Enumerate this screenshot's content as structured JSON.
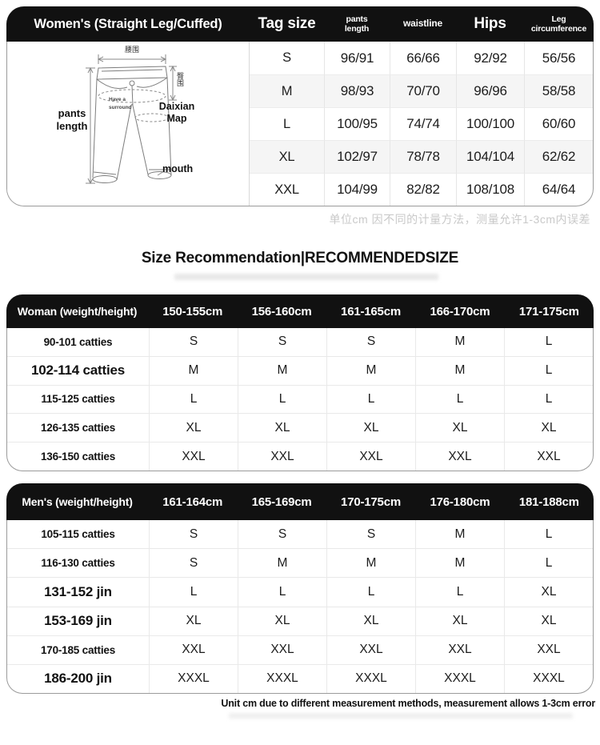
{
  "notes": {
    "cn_tolerance": "单位cm 因不同的计量方法，测量允许1-3cm内误差",
    "en_tolerance": "Unit cm due to different measurement methods, measurement allows 1-3cm error"
  },
  "section_title": "Size Recommendation|RECOMMENDEDSIZE",
  "spec_table": {
    "title": "Women's (Straight Leg/Cuffed)",
    "columns": [
      "Tag size",
      "pants\nlength",
      "waistline",
      "Hips",
      "Leg\ncircumference"
    ],
    "rows": [
      {
        "size": "S",
        "pants_length": "96/91",
        "waistline": "66/66",
        "hips": "92/92",
        "leg": "56/56"
      },
      {
        "size": "M",
        "pants_length": "98/93",
        "waistline": "70/70",
        "hips": "96/96",
        "leg": "58/58"
      },
      {
        "size": "L",
        "pants_length": "100/95",
        "waistline": "74/74",
        "hips": "100/100",
        "leg": "60/60"
      },
      {
        "size": "XL",
        "pants_length": "102/97",
        "waistline": "78/78",
        "hips": "104/104",
        "leg": "62/62"
      },
      {
        "size": "XXL",
        "pants_length": "104/99",
        "waistline": "82/82",
        "hips": "108/108",
        "leg": "64/64"
      }
    ]
  },
  "diagram": {
    "labels": {
      "waist_cn": "腰围",
      "hip_cn": "臀围",
      "pants_length": "pants\nlength",
      "surround": "Have a\nsurround",
      "daixian": "Daixian\nMap",
      "mouth": "mouth"
    }
  },
  "women_table": {
    "header_label": "Woman (weight/height)",
    "height_columns": [
      "150-155cm",
      "156-160cm",
      "161-165cm",
      "166-170cm",
      "171-175cm"
    ],
    "rows": [
      {
        "weight": "90-101 catties",
        "big": false,
        "sizes": [
          "S",
          "S",
          "S",
          "M",
          "L"
        ]
      },
      {
        "weight": "102-114 catties",
        "big": true,
        "sizes": [
          "M",
          "M",
          "M",
          "M",
          "L"
        ]
      },
      {
        "weight": "115-125 catties",
        "big": false,
        "sizes": [
          "L",
          "L",
          "L",
          "L",
          "L"
        ]
      },
      {
        "weight": "126-135 catties",
        "big": false,
        "sizes": [
          "XL",
          "XL",
          "XL",
          "XL",
          "XL"
        ]
      },
      {
        "weight": "136-150 catties",
        "big": false,
        "sizes": [
          "XXL",
          "XXL",
          "XXL",
          "XXL",
          "XXL"
        ]
      }
    ]
  },
  "men_table": {
    "header_label": "Men's (weight/height)",
    "height_columns": [
      "161-164cm",
      "165-169cm",
      "170-175cm",
      "176-180cm",
      "181-188cm"
    ],
    "rows": [
      {
        "weight": "105-115 catties",
        "big": false,
        "sizes": [
          "S",
          "S",
          "S",
          "M",
          "L"
        ]
      },
      {
        "weight": "116-130 catties",
        "big": false,
        "sizes": [
          "S",
          "M",
          "M",
          "M",
          "L"
        ]
      },
      {
        "weight": "131-152 jin",
        "big": true,
        "sizes": [
          "L",
          "L",
          "L",
          "L",
          "XL"
        ]
      },
      {
        "weight": "153-169 jin",
        "big": true,
        "sizes": [
          "XL",
          "XL",
          "XL",
          "XL",
          "XL"
        ]
      },
      {
        "weight": "170-185 catties",
        "big": false,
        "sizes": [
          "XXL",
          "XXL",
          "XXL",
          "XXL",
          "XXL"
        ]
      },
      {
        "weight": "186-200 jin",
        "big": true,
        "sizes": [
          "XXXL",
          "XXXL",
          "XXXL",
          "XXXL",
          "XXXL"
        ]
      }
    ]
  },
  "colors": {
    "header_bg": "#111111",
    "row_alt": "#f5f5f5",
    "grid_line": "#e9e9e9",
    "outer_border": "#9b9b9b",
    "cn_note_gray": "#c9c9c9"
  }
}
